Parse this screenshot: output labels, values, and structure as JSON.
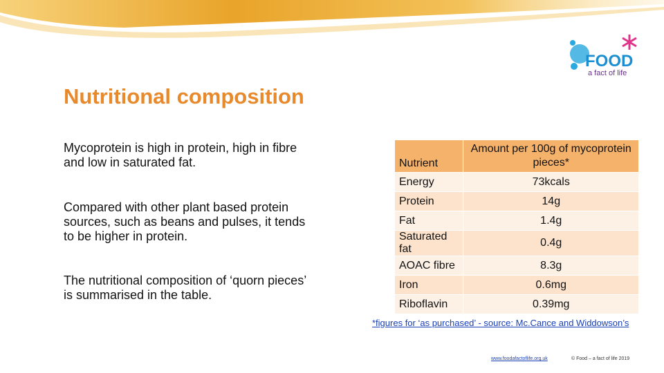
{
  "title": "Nutritional composition",
  "logo": {
    "word": "FOOD",
    "tagline": "a fact of life"
  },
  "paragraphs": [
    "Mycoprotein is high in protein, high in fibre and low in saturated fat.",
    "Compared with other plant based protein sources, such as beans and pulses, it tends to be higher in protein.",
    "The nutritional composition of ‘quorn pieces’ is summarised in the table."
  ],
  "table": {
    "header": [
      "Nutrient",
      "Amount per 100g of mycoprotein pieces*"
    ],
    "rows": [
      [
        "Energy",
        "73kcals"
      ],
      [
        "Protein",
        "14g"
      ],
      [
        "Fat",
        "1.4g"
      ],
      [
        "Saturated fat",
        "0.4g"
      ],
      [
        "AOAC fibre",
        "8.3g"
      ],
      [
        "Iron",
        "0.6mg"
      ],
      [
        "Riboflavin",
        "0.39mg"
      ]
    ]
  },
  "footnote": "*figures for ‘as purchased’ - source: Mc.Cance and Widdowson’s",
  "footer": {
    "url": "www.foodafactoflife.org.uk",
    "copyright": "© Food – a fact of life 2019"
  }
}
